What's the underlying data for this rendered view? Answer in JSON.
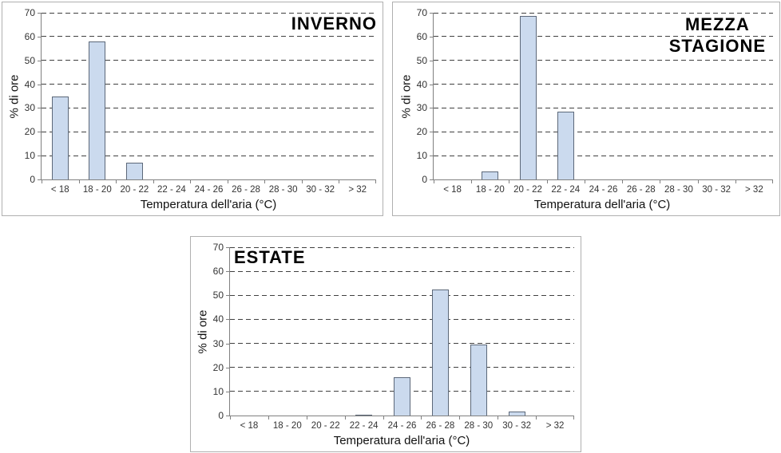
{
  "styles": {
    "background": "#ffffff",
    "box_border": "#b0b0b0",
    "axis_color": "#808080",
    "gridline_color": "#404040",
    "tick_text_color": "#333333",
    "label_text_color": "#111111",
    "title_color": "#000000",
    "bar_fill": "#cbdaee",
    "bar_border": "#5c6879"
  },
  "chart_data": [
    {
      "id": "inverno",
      "type": "bar",
      "title": "INVERNO",
      "title_display": "INVERNO",
      "title_position": "top-right",
      "categories": [
        "< 18",
        "18 - 20",
        "20 - 22",
        "22 - 24",
        "24 - 26",
        "26 - 28",
        "28 - 30",
        "30 - 32",
        "> 32"
      ],
      "values": [
        35,
        58,
        7,
        0,
        0,
        0,
        0,
        0,
        0
      ],
      "xlabel": "Temperatura dell'aria (°C)",
      "ylabel": "% di ore",
      "ylim": [
        0,
        70
      ],
      "yticks": [
        0,
        10,
        20,
        30,
        40,
        50,
        60,
        70
      ],
      "grid": "horizontal-dashed",
      "legend": "none"
    },
    {
      "id": "mezza-stagione",
      "type": "bar",
      "title": "MEZZA STAGIONE",
      "title_display": "MEZZA\nSTAGIONE",
      "title_position": "top-right",
      "categories": [
        "< 18",
        "18 - 20",
        "20 - 22",
        "22 - 24",
        "24 - 26",
        "26 - 28",
        "28 - 30",
        "30 - 32",
        "> 32"
      ],
      "values": [
        0,
        3.5,
        68.5,
        28.5,
        0,
        0,
        0,
        0,
        0
      ],
      "xlabel": "Temperatura dell'aria (°C)",
      "ylabel": "% di ore",
      "ylim": [
        0,
        70
      ],
      "yticks": [
        0,
        10,
        20,
        30,
        40,
        50,
        60,
        70
      ],
      "grid": "horizontal-dashed",
      "legend": "none"
    },
    {
      "id": "estate",
      "type": "bar",
      "title": "ESTATE",
      "title_display": "ESTATE",
      "title_position": "top-left",
      "categories": [
        "< 18",
        "18 - 20",
        "20 - 22",
        "22 - 24",
        "24 - 26",
        "26 - 28",
        "28 - 30",
        "30 - 32",
        "> 32"
      ],
      "values": [
        0,
        0,
        0,
        0.5,
        16,
        52.5,
        29.5,
        1.5,
        0
      ],
      "xlabel": "Temperatura dell'aria (°C)",
      "ylabel": "% di ore",
      "ylim": [
        0,
        70
      ],
      "yticks": [
        0,
        10,
        20,
        30,
        40,
        50,
        60,
        70
      ],
      "grid": "horizontal-dashed",
      "legend": "none"
    }
  ]
}
